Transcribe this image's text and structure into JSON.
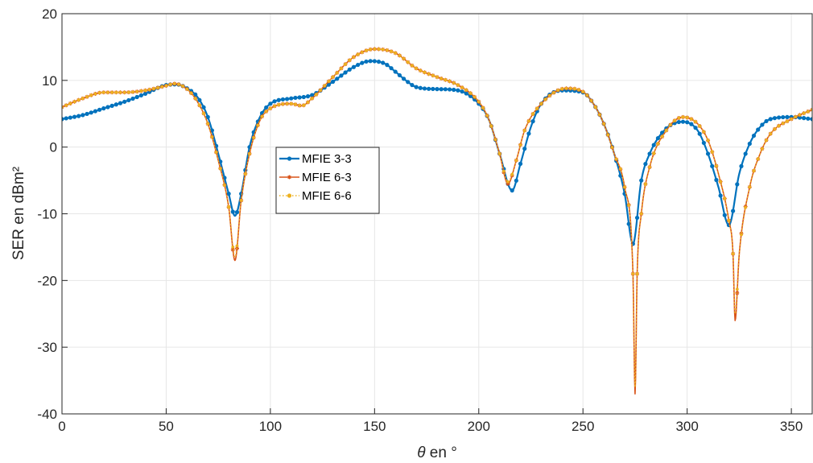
{
  "chart_data": {
    "type": "line",
    "title": "",
    "xlabel_symbol": "θ",
    "xlabel_rest": " en °",
    "ylabel": "SER en dBm²",
    "xlim": [
      0,
      360
    ],
    "ylim": [
      -40,
      20
    ],
    "xticks": [
      0,
      50,
      100,
      150,
      200,
      250,
      300,
      350
    ],
    "yticks": [
      -40,
      -30,
      -20,
      -10,
      0,
      10,
      20
    ],
    "grid": true,
    "legend_position": "center-left",
    "series": [
      {
        "name": "MFIE 3-3",
        "color": "#0072BD",
        "marker": "circle",
        "line_style": "solid",
        "points": [
          [
            0,
            4.2
          ],
          [
            10,
            4.8
          ],
          [
            20,
            5.8
          ],
          [
            30,
            6.8
          ],
          [
            40,
            8.0
          ],
          [
            50,
            9.3
          ],
          [
            55,
            9.4
          ],
          [
            60,
            8.8
          ],
          [
            65,
            7.5
          ],
          [
            70,
            4.5
          ],
          [
            75,
            -1
          ],
          [
            80,
            -7
          ],
          [
            83,
            -10.3
          ],
          [
            86,
            -7
          ],
          [
            90,
            0
          ],
          [
            95,
            4.5
          ],
          [
            100,
            6.5
          ],
          [
            110,
            7.3
          ],
          [
            120,
            7.8
          ],
          [
            130,
            9.8
          ],
          [
            140,
            12.0
          ],
          [
            148,
            12.9
          ],
          [
            155,
            12.5
          ],
          [
            160,
            11.3
          ],
          [
            165,
            10
          ],
          [
            170,
            9.0
          ],
          [
            180,
            8.7
          ],
          [
            190,
            8.5
          ],
          [
            200,
            6.5
          ],
          [
            205,
            4
          ],
          [
            210,
            -1
          ],
          [
            216,
            -6.5
          ],
          [
            220,
            -2.5
          ],
          [
            225,
            3
          ],
          [
            230,
            6.5
          ],
          [
            240,
            8.5
          ],
          [
            250,
            8.2
          ],
          [
            255,
            6.5
          ],
          [
            260,
            3.5
          ],
          [
            265,
            -1
          ],
          [
            270,
            -7
          ],
          [
            274,
            -14.5
          ],
          [
            278,
            -5
          ],
          [
            282,
            -1
          ],
          [
            290,
            2.8
          ],
          [
            298,
            3.8
          ],
          [
            305,
            2.5
          ],
          [
            310,
            -1
          ],
          [
            315,
            -6
          ],
          [
            320,
            -11.7
          ],
          [
            325,
            -4
          ],
          [
            330,
            0.5
          ],
          [
            335,
            3.0
          ],
          [
            340,
            4.2
          ],
          [
            350,
            4.5
          ],
          [
            360,
            4.2
          ]
        ]
      },
      {
        "name": "MFIE 6-3",
        "color": "#D95319",
        "marker": "star",
        "line_style": "solid",
        "points": [
          [
            0,
            6.0
          ],
          [
            10,
            7.3
          ],
          [
            20,
            8.2
          ],
          [
            30,
            8.2
          ],
          [
            40,
            8.5
          ],
          [
            50,
            9.2
          ],
          [
            54,
            9.5
          ],
          [
            60,
            8.7
          ],
          [
            65,
            6.8
          ],
          [
            70,
            3.5
          ],
          [
            75,
            -2
          ],
          [
            80,
            -9
          ],
          [
            83,
            -17
          ],
          [
            86,
            -8
          ],
          [
            90,
            -1
          ],
          [
            95,
            4
          ],
          [
            100,
            5.8
          ],
          [
            110,
            6.5
          ],
          [
            115,
            6.2
          ],
          [
            120,
            7.3
          ],
          [
            130,
            10.5
          ],
          [
            140,
            13.5
          ],
          [
            150,
            14.7
          ],
          [
            160,
            14.1
          ],
          [
            170,
            11.8
          ],
          [
            180,
            10.5
          ],
          [
            190,
            9.3
          ],
          [
            200,
            6.8
          ],
          [
            205,
            4
          ],
          [
            210,
            -1
          ],
          [
            214,
            -5.5
          ],
          [
            218,
            -2
          ],
          [
            222,
            2.5
          ],
          [
            230,
            6.5
          ],
          [
            242,
            8.8
          ],
          [
            250,
            8.3
          ],
          [
            255,
            6.5
          ],
          [
            260,
            3.5
          ],
          [
            265,
            -1
          ],
          [
            270,
            -6
          ],
          [
            274,
            -19
          ],
          [
            275,
            -37
          ],
          [
            276,
            -19
          ],
          [
            278,
            -10
          ],
          [
            282,
            -3
          ],
          [
            290,
            2.5
          ],
          [
            298,
            4.5
          ],
          [
            305,
            3.5
          ],
          [
            310,
            1
          ],
          [
            315,
            -4
          ],
          [
            320,
            -11
          ],
          [
            322,
            -16
          ],
          [
            323,
            -26
          ],
          [
            325,
            -16
          ],
          [
            330,
            -6
          ],
          [
            335,
            -1
          ],
          [
            340,
            2
          ],
          [
            350,
            4.2
          ],
          [
            360,
            5.6
          ]
        ]
      },
      {
        "name": "MFIE 6-6",
        "color": "#EDB120",
        "marker": "dot",
        "line_style": "dotted",
        "points": [
          [
            0,
            6.0
          ],
          [
            10,
            7.3
          ],
          [
            20,
            8.2
          ],
          [
            30,
            8.2
          ],
          [
            40,
            8.5
          ],
          [
            50,
            9.2
          ],
          [
            54,
            9.5
          ],
          [
            60,
            8.7
          ],
          [
            65,
            6.8
          ],
          [
            70,
            3.5
          ],
          [
            75,
            -2
          ],
          [
            80,
            -9
          ],
          [
            83,
            -16.5
          ],
          [
            86,
            -8
          ],
          [
            90,
            -1
          ],
          [
            95,
            4
          ],
          [
            100,
            5.8
          ],
          [
            110,
            6.5
          ],
          [
            115,
            6.2
          ],
          [
            120,
            7.3
          ],
          [
            130,
            10.5
          ],
          [
            140,
            13.5
          ],
          [
            150,
            14.7
          ],
          [
            160,
            14.1
          ],
          [
            170,
            11.8
          ],
          [
            180,
            10.5
          ],
          [
            190,
            9.3
          ],
          [
            200,
            6.8
          ],
          [
            205,
            4
          ],
          [
            210,
            -1
          ],
          [
            214,
            -5.2
          ],
          [
            218,
            -2
          ],
          [
            222,
            2.5
          ],
          [
            230,
            6.5
          ],
          [
            242,
            8.8
          ],
          [
            250,
            8.3
          ],
          [
            255,
            6.5
          ],
          [
            260,
            3.5
          ],
          [
            265,
            -1
          ],
          [
            270,
            -6
          ],
          [
            274,
            -19
          ],
          [
            275,
            -36
          ],
          [
            276,
            -19
          ],
          [
            278,
            -10
          ],
          [
            282,
            -3
          ],
          [
            290,
            2.5
          ],
          [
            298,
            4.5
          ],
          [
            305,
            3.5
          ],
          [
            310,
            1
          ],
          [
            315,
            -4
          ],
          [
            320,
            -11
          ],
          [
            322,
            -16
          ],
          [
            323,
            -25
          ],
          [
            325,
            -16
          ],
          [
            330,
            -6
          ],
          [
            335,
            -1
          ],
          [
            340,
            2
          ],
          [
            350,
            4.2
          ],
          [
            360,
            5.6
          ]
        ]
      }
    ]
  }
}
